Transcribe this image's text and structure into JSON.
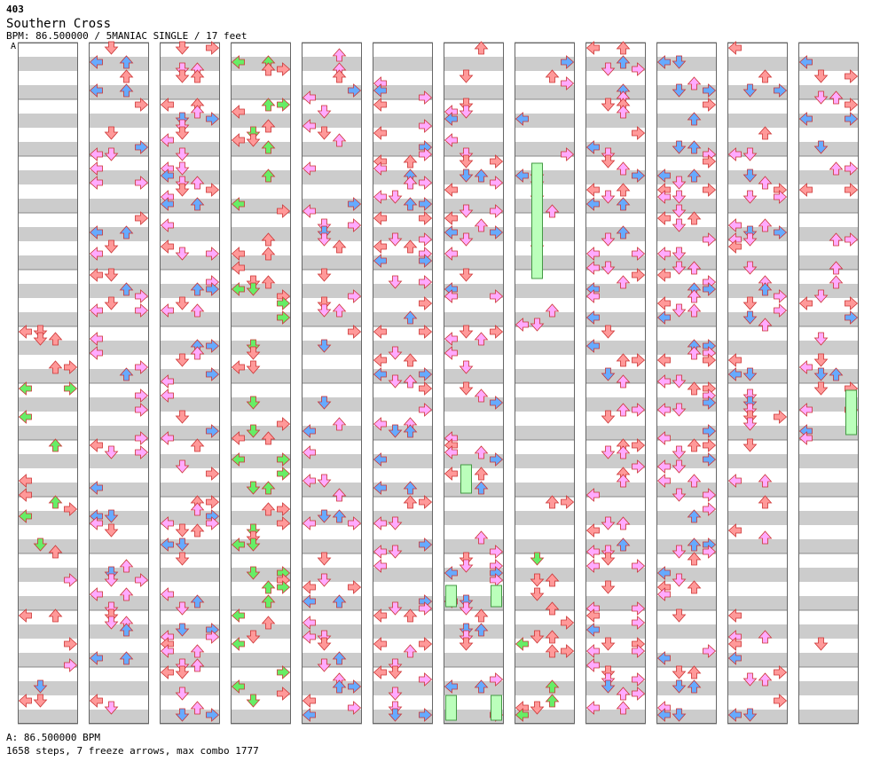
{
  "header": {
    "song_number": "403",
    "title": "Southern Cross",
    "meta": "BPM: 86.500000 / 5MANIAC SINGLE / 17 feet",
    "bpm_marker": "A"
  },
  "footer": {
    "bpm_line": "A: 86.500000 BPM",
    "stats": "1658 steps, 7 freeze arrows, max combo 1777"
  },
  "colors": {
    "quarter_note": "#ff9999",
    "eighth_note": "#66aaff",
    "sixteenth_note": "#ffaaff",
    "dotted_note": "#66ee66",
    "freeze": "#bbffbb",
    "stripe": "#cccccc"
  },
  "chart_data": {
    "type": "step-chart",
    "columns_count": 12,
    "measures_per_column": 4,
    "lanes": [
      "left",
      "down",
      "up",
      "right"
    ],
    "steps_total": 1658,
    "freeze_arrows": 7,
    "max_combo": 1777,
    "bpm": 86.5
  }
}
